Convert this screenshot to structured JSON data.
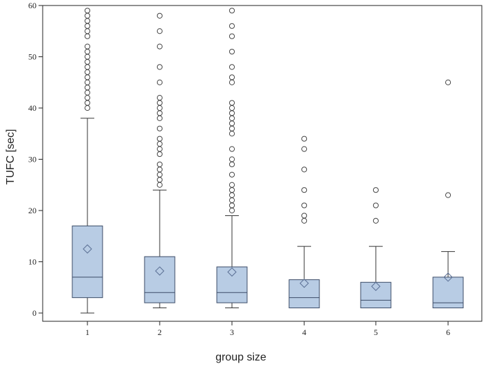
{
  "chart_data": {
    "type": "box",
    "title": "",
    "xlabel": "group size",
    "ylabel": "TUFC [sec]",
    "ylim": [
      0,
      60
    ],
    "yticks": [
      0,
      10,
      20,
      30,
      40,
      50,
      60
    ],
    "categories": [
      "1",
      "2",
      "3",
      "4",
      "5",
      "6"
    ],
    "colors": {
      "box_fill": "#b8cce4",
      "box_stroke": "#3a4a66",
      "whisker": "#333333",
      "outlier": "#444444",
      "mean_marker": "#5a6f94"
    },
    "boxes": [
      {
        "category": "1",
        "min": 0,
        "q1": 3,
        "median": 7,
        "q3": 17,
        "max": 38,
        "mean": 12.5,
        "outliers": [
          40,
          41,
          42,
          43,
          44,
          45,
          46,
          47,
          48,
          49,
          50,
          51,
          52,
          54,
          55,
          56,
          57,
          58,
          59
        ]
      },
      {
        "category": "2",
        "min": 1,
        "q1": 2,
        "median": 4,
        "q3": 11,
        "max": 24,
        "mean": 8.2,
        "outliers": [
          25,
          26,
          27,
          28,
          29,
          31,
          32,
          33,
          34,
          36,
          38,
          39,
          40,
          41,
          42,
          45,
          48,
          52,
          55,
          58
        ]
      },
      {
        "category": "3",
        "min": 1,
        "q1": 2,
        "median": 4,
        "q3": 9,
        "max": 19,
        "mean": 8,
        "outliers": [
          20,
          21,
          22,
          23,
          24,
          25,
          27,
          29,
          30,
          32,
          35,
          36,
          37,
          38,
          39,
          40,
          41,
          45,
          46,
          48,
          51,
          54,
          56,
          59
        ]
      },
      {
        "category": "4",
        "min": 1,
        "q1": 1,
        "median": 3,
        "q3": 6.5,
        "max": 13,
        "mean": 5.8,
        "outliers": [
          18,
          19,
          21,
          24,
          28,
          32,
          34
        ]
      },
      {
        "category": "5",
        "min": 1,
        "q1": 1,
        "median": 2.5,
        "q3": 6,
        "max": 13,
        "mean": 5.2,
        "outliers": [
          18,
          21,
          24
        ]
      },
      {
        "category": "6",
        "min": 1,
        "q1": 1,
        "median": 2,
        "q3": 7,
        "max": 12,
        "mean": 7,
        "outliers": [
          23,
          45
        ]
      }
    ]
  }
}
